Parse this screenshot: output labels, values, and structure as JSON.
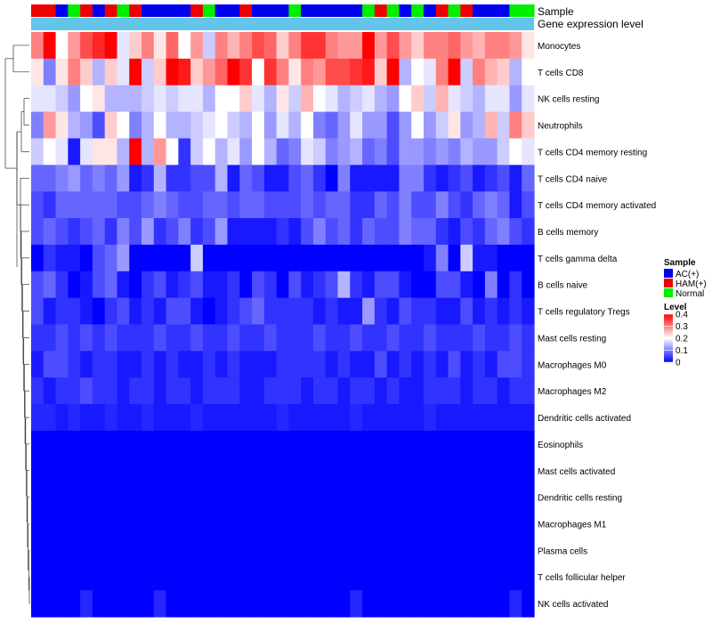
{
  "chart_data": {
    "type": "heatmap",
    "title": "",
    "annotations": {
      "sample_label": "Sample",
      "expression_label": "Gene expression level",
      "expression_color": "#63c5ea"
    },
    "sample_groups": [
      "HAM(+)",
      "HAM(+)",
      "AC(+)",
      "Normal",
      "HAM(+)",
      "AC(+)",
      "HAM(+)",
      "Normal",
      "HAM(+)",
      "AC(+)",
      "AC(+)",
      "AC(+)",
      "AC(+)",
      "HAM(+)",
      "Normal",
      "AC(+)",
      "AC(+)",
      "HAM(+)",
      "AC(+)",
      "AC(+)",
      "AC(+)",
      "Normal",
      "AC(+)",
      "AC(+)",
      "AC(+)",
      "AC(+)",
      "AC(+)",
      "Normal",
      "HAM(+)",
      "Normal",
      "AC(+)",
      "Normal",
      "AC(+)",
      "HAM(+)",
      "Normal",
      "HAM(+)",
      "AC(+)",
      "AC(+)",
      "AC(+)",
      "Normal",
      "Normal"
    ],
    "rows": [
      {
        "label": "Monocytes",
        "values": [
          0.3,
          0.4,
          0.2,
          0.28,
          0.34,
          0.37,
          0.4,
          0.18,
          0.24,
          0.3,
          0.22,
          0.32,
          0.2,
          0.28,
          0.16,
          0.3,
          0.26,
          0.3,
          0.34,
          0.32,
          0.24,
          0.3,
          0.36,
          0.36,
          0.3,
          0.28,
          0.28,
          0.4,
          0.28,
          0.34,
          0.28,
          0.24,
          0.3,
          0.3,
          0.32,
          0.28,
          0.26,
          0.3,
          0.3,
          0.28,
          0.22
        ]
      },
      {
        "label": "T cells CD8",
        "values": [
          0.22,
          0.1,
          0.22,
          0.3,
          0.24,
          0.14,
          0.24,
          0.18,
          0.4,
          0.16,
          0.24,
          0.4,
          0.38,
          0.24,
          0.28,
          0.32,
          0.4,
          0.36,
          0.2,
          0.36,
          0.3,
          0.22,
          0.3,
          0.28,
          0.34,
          0.34,
          0.36,
          0.38,
          0.24,
          0.4,
          0.14,
          0.2,
          0.18,
          0.3,
          0.4,
          0.16,
          0.3,
          0.26,
          0.24,
          0.14,
          0.2
        ]
      },
      {
        "label": "NK cells resting",
        "values": [
          0.18,
          0.18,
          0.16,
          0.12,
          0.2,
          0.22,
          0.14,
          0.14,
          0.14,
          0.16,
          0.18,
          0.16,
          0.18,
          0.18,
          0.14,
          0.2,
          0.2,
          0.24,
          0.18,
          0.14,
          0.22,
          0.16,
          0.26,
          0.2,
          0.18,
          0.14,
          0.16,
          0.18,
          0.14,
          0.12,
          0.2,
          0.24,
          0.16,
          0.26,
          0.18,
          0.16,
          0.14,
          0.18,
          0.18,
          0.12,
          0.18
        ]
      },
      {
        "label": "Neutrophils",
        "values": [
          0.1,
          0.28,
          0.22,
          0.14,
          0.12,
          0.06,
          0.24,
          0.2,
          0.1,
          0.14,
          0.2,
          0.14,
          0.14,
          0.16,
          0.18,
          0.2,
          0.16,
          0.14,
          0.2,
          0.12,
          0.18,
          0.14,
          0.2,
          0.1,
          0.08,
          0.12,
          0.18,
          0.12,
          0.12,
          0.06,
          0.12,
          0.2,
          0.12,
          0.16,
          0.22,
          0.12,
          0.14,
          0.26,
          0.16,
          0.3,
          0.24
        ]
      },
      {
        "label": "T cells CD4 memory resting",
        "values": [
          0.16,
          0.2,
          0.18,
          0.02,
          0.18,
          0.22,
          0.22,
          0.14,
          0.4,
          0.14,
          0.28,
          0.2,
          0.04,
          0.16,
          0.2,
          0.14,
          0.18,
          0.12,
          0.2,
          0.14,
          0.08,
          0.1,
          0.18,
          0.16,
          0.1,
          0.12,
          0.14,
          0.08,
          0.1,
          0.06,
          0.12,
          0.12,
          0.1,
          0.12,
          0.1,
          0.14,
          0.12,
          0.12,
          0.16,
          0.2,
          0.18
        ]
      },
      {
        "label": "T cells CD4 naive",
        "values": [
          0.08,
          0.08,
          0.1,
          0.12,
          0.08,
          0.1,
          0.08,
          0.12,
          0.02,
          0.04,
          0.14,
          0.04,
          0.04,
          0.06,
          0.06,
          0.14,
          0.02,
          0.08,
          0.06,
          0.02,
          0.02,
          0.06,
          0.08,
          0.04,
          0.0,
          0.1,
          0.02,
          0.02,
          0.02,
          0.02,
          0.1,
          0.1,
          0.04,
          0.02,
          0.04,
          0.06,
          0.02,
          0.04,
          0.06,
          0.02,
          0.08
        ]
      },
      {
        "label": "T cells CD4 memory activated",
        "values": [
          0.06,
          0.04,
          0.08,
          0.08,
          0.08,
          0.08,
          0.08,
          0.06,
          0.06,
          0.08,
          0.1,
          0.08,
          0.06,
          0.06,
          0.08,
          0.08,
          0.06,
          0.08,
          0.08,
          0.06,
          0.06,
          0.06,
          0.08,
          0.06,
          0.08,
          0.08,
          0.04,
          0.04,
          0.08,
          0.06,
          0.1,
          0.06,
          0.06,
          0.1,
          0.06,
          0.04,
          0.08,
          0.1,
          0.08,
          0.02,
          0.06
        ]
      },
      {
        "label": "B cells memory",
        "values": [
          0.06,
          0.08,
          0.06,
          0.04,
          0.06,
          0.08,
          0.04,
          0.1,
          0.06,
          0.12,
          0.04,
          0.06,
          0.1,
          0.04,
          0.06,
          0.12,
          0.02,
          0.02,
          0.02,
          0.02,
          0.04,
          0.02,
          0.06,
          0.1,
          0.06,
          0.08,
          0.04,
          0.08,
          0.06,
          0.06,
          0.1,
          0.08,
          0.08,
          0.04,
          0.02,
          0.06,
          0.04,
          0.08,
          0.1,
          0.06,
          0.04
        ]
      },
      {
        "label": "T cells gamma delta",
        "values": [
          0.0,
          0.04,
          0.02,
          0.02,
          0.0,
          0.06,
          0.08,
          0.12,
          0.0,
          0.0,
          0.0,
          0.0,
          0.0,
          0.16,
          0.0,
          0.0,
          0.0,
          0.0,
          0.0,
          0.0,
          0.0,
          0.0,
          0.0,
          0.0,
          0.0,
          0.0,
          0.0,
          0.0,
          0.0,
          0.0,
          0.0,
          0.0,
          0.02,
          0.1,
          0.0,
          0.16,
          0.02,
          0.02,
          0.0,
          0.0,
          0.0
        ]
      },
      {
        "label": "B cells naive",
        "values": [
          0.06,
          0.08,
          0.04,
          0.0,
          0.02,
          0.06,
          0.08,
          0.02,
          0.0,
          0.04,
          0.06,
          0.02,
          0.04,
          0.06,
          0.02,
          0.02,
          0.04,
          0.0,
          0.06,
          0.04,
          0.0,
          0.06,
          0.02,
          0.04,
          0.06,
          0.14,
          0.04,
          0.02,
          0.06,
          0.06,
          0.02,
          0.0,
          0.0,
          0.06,
          0.06,
          0.02,
          0.0,
          0.1,
          0.0,
          0.04,
          0.0
        ]
      },
      {
        "label": "T cells regulatory  Tregs",
        "values": [
          0.06,
          0.02,
          0.04,
          0.04,
          0.02,
          0.0,
          0.04,
          0.06,
          0.02,
          0.04,
          0.02,
          0.06,
          0.06,
          0.02,
          0.0,
          0.02,
          0.04,
          0.06,
          0.08,
          0.04,
          0.04,
          0.04,
          0.04,
          0.02,
          0.04,
          0.02,
          0.02,
          0.12,
          0.04,
          0.02,
          0.06,
          0.04,
          0.04,
          0.02,
          0.02,
          0.06,
          0.02,
          0.04,
          0.02,
          0.04,
          0.02
        ]
      },
      {
        "label": "Mast cells resting",
        "values": [
          0.04,
          0.04,
          0.06,
          0.04,
          0.06,
          0.04,
          0.06,
          0.04,
          0.04,
          0.04,
          0.06,
          0.04,
          0.04,
          0.06,
          0.04,
          0.04,
          0.06,
          0.04,
          0.04,
          0.06,
          0.04,
          0.04,
          0.04,
          0.06,
          0.04,
          0.04,
          0.06,
          0.04,
          0.04,
          0.06,
          0.04,
          0.04,
          0.06,
          0.04,
          0.04,
          0.04,
          0.06,
          0.04,
          0.04,
          0.06,
          0.04
        ]
      },
      {
        "label": "Macrophages M0",
        "values": [
          0.02,
          0.06,
          0.06,
          0.04,
          0.02,
          0.04,
          0.04,
          0.02,
          0.02,
          0.04,
          0.02,
          0.04,
          0.02,
          0.02,
          0.04,
          0.02,
          0.04,
          0.02,
          0.02,
          0.02,
          0.04,
          0.04,
          0.04,
          0.04,
          0.02,
          0.04,
          0.02,
          0.02,
          0.06,
          0.02,
          0.04,
          0.02,
          0.04,
          0.02,
          0.06,
          0.02,
          0.04,
          0.02,
          0.06,
          0.06,
          0.04
        ]
      },
      {
        "label": "Macrophages M2",
        "values": [
          0.04,
          0.02,
          0.04,
          0.04,
          0.06,
          0.04,
          0.04,
          0.02,
          0.04,
          0.04,
          0.02,
          0.04,
          0.04,
          0.02,
          0.04,
          0.04,
          0.04,
          0.02,
          0.02,
          0.04,
          0.04,
          0.04,
          0.02,
          0.04,
          0.04,
          0.02,
          0.04,
          0.04,
          0.02,
          0.04,
          0.02,
          0.02,
          0.04,
          0.04,
          0.04,
          0.02,
          0.04,
          0.04,
          0.02,
          0.04,
          0.04
        ]
      },
      {
        "label": "Dendritic cells activated",
        "values": [
          0.03,
          0.03,
          0.02,
          0.03,
          0.02,
          0.02,
          0.03,
          0.02,
          0.02,
          0.03,
          0.02,
          0.02,
          0.02,
          0.03,
          0.02,
          0.02,
          0.02,
          0.02,
          0.02,
          0.02,
          0.03,
          0.02,
          0.02,
          0.02,
          0.02,
          0.02,
          0.03,
          0.02,
          0.02,
          0.02,
          0.02,
          0.02,
          0.03,
          0.02,
          0.02,
          0.02,
          0.02,
          0.02,
          0.02,
          0.02,
          0.02
        ]
      },
      {
        "label": "Eosinophils",
        "values": [
          0,
          0,
          0,
          0,
          0,
          0,
          0,
          0,
          0,
          0,
          0,
          0,
          0,
          0,
          0,
          0,
          0,
          0,
          0,
          0,
          0,
          0,
          0,
          0,
          0,
          0,
          0,
          0,
          0,
          0,
          0,
          0,
          0,
          0,
          0,
          0,
          0,
          0,
          0,
          0,
          0
        ]
      },
      {
        "label": "Mast cells activated",
        "values": [
          0,
          0,
          0,
          0,
          0,
          0,
          0,
          0,
          0,
          0,
          0,
          0,
          0,
          0,
          0,
          0,
          0,
          0,
          0,
          0,
          0,
          0,
          0,
          0,
          0,
          0,
          0,
          0,
          0,
          0,
          0,
          0,
          0,
          0,
          0,
          0,
          0,
          0,
          0,
          0,
          0
        ]
      },
      {
        "label": "Dendritic cells resting",
        "values": [
          0,
          0,
          0,
          0,
          0,
          0,
          0,
          0,
          0,
          0,
          0,
          0,
          0,
          0,
          0,
          0,
          0,
          0,
          0,
          0,
          0,
          0,
          0,
          0,
          0,
          0,
          0,
          0,
          0,
          0,
          0,
          0,
          0,
          0,
          0,
          0,
          0,
          0,
          0,
          0,
          0
        ]
      },
      {
        "label": "Macrophages M1",
        "values": [
          0,
          0,
          0,
          0,
          0,
          0,
          0,
          0,
          0,
          0,
          0,
          0,
          0,
          0,
          0,
          0,
          0,
          0,
          0,
          0,
          0,
          0,
          0,
          0,
          0,
          0,
          0,
          0,
          0,
          0,
          0,
          0,
          0,
          0,
          0,
          0,
          0,
          0,
          0,
          0,
          0
        ]
      },
      {
        "label": "Plasma cells",
        "values": [
          0,
          0,
          0,
          0,
          0,
          0,
          0,
          0,
          0,
          0,
          0,
          0,
          0,
          0,
          0,
          0,
          0,
          0,
          0,
          0,
          0,
          0,
          0,
          0,
          0,
          0,
          0,
          0,
          0,
          0,
          0,
          0,
          0,
          0,
          0,
          0,
          0,
          0,
          0,
          0,
          0
        ]
      },
      {
        "label": "T cells follicular helper",
        "values": [
          0,
          0,
          0,
          0,
          0,
          0,
          0,
          0,
          0,
          0,
          0,
          0,
          0,
          0,
          0,
          0,
          0,
          0,
          0,
          0,
          0,
          0,
          0,
          0,
          0,
          0,
          0,
          0,
          0,
          0,
          0,
          0,
          0,
          0,
          0,
          0,
          0,
          0,
          0,
          0,
          0
        ]
      },
      {
        "label": "NK cells activated",
        "values": [
          0,
          0,
          0,
          0,
          0.03,
          0,
          0,
          0,
          0,
          0,
          0.03,
          0,
          0,
          0,
          0,
          0,
          0,
          0,
          0,
          0,
          0,
          0,
          0,
          0,
          0,
          0,
          0.03,
          0,
          0,
          0,
          0,
          0,
          0,
          0,
          0,
          0,
          0,
          0,
          0,
          0.03,
          0
        ]
      }
    ],
    "legend_sample": {
      "title": "Sample",
      "items": [
        {
          "label": "AC(+)",
          "color": "#0000ee"
        },
        {
          "label": "HAM(+)",
          "color": "#ee0000"
        },
        {
          "label": "Normal",
          "color": "#00ee00"
        }
      ]
    },
    "legend_level": {
      "title": "Level",
      "ticks": [
        "0.4",
        "0.3",
        "0.2",
        "0.1",
        "0"
      ],
      "tick_values": [
        0.4,
        0.3,
        0.2,
        0.1,
        0
      ],
      "range": [
        0,
        0.4
      ]
    },
    "colors": {
      "low": "#0000ff",
      "mid": "#ffffff",
      "high": "#ff0000"
    }
  }
}
